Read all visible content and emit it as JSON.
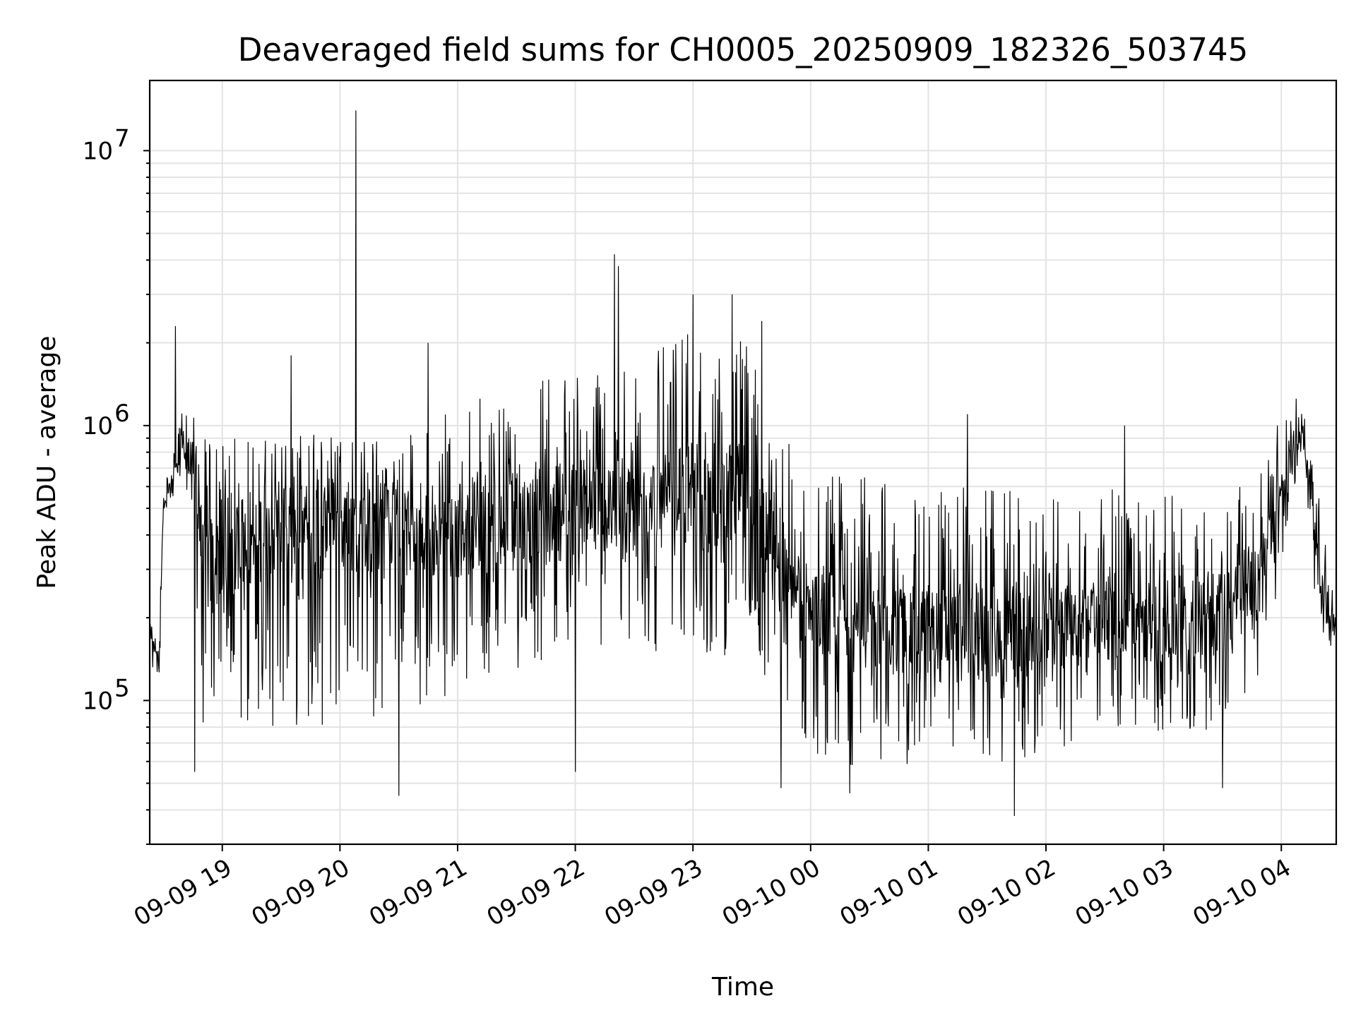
{
  "chart_data": {
    "type": "line",
    "title": "Deaveraged field sums for CH0005_20250909_182326_503745",
    "xlabel": "Time",
    "ylabel": "Peak ADU - average",
    "yscale": "log",
    "xlim": [
      "2025-09-09 18:23",
      "2025-09-10 04:28"
    ],
    "ylim": [
      30000,
      18000000
    ],
    "grid": true,
    "x_ticks": [
      {
        "t": "2025-09-09 19:00",
        "label": "09-09 19"
      },
      {
        "t": "2025-09-09 20:00",
        "label": "09-09 20"
      },
      {
        "t": "2025-09-09 21:00",
        "label": "09-09 21"
      },
      {
        "t": "2025-09-09 22:00",
        "label": "09-09 22"
      },
      {
        "t": "2025-09-09 23:00",
        "label": "09-09 23"
      },
      {
        "t": "2025-09-10 00:00",
        "label": "09-10 00"
      },
      {
        "t": "2025-09-10 01:00",
        "label": "09-10 01"
      },
      {
        "t": "2025-09-10 02:00",
        "label": "09-10 02"
      },
      {
        "t": "2025-09-10 03:00",
        "label": "09-10 03"
      },
      {
        "t": "2025-09-10 04:00",
        "label": "09-10 04"
      }
    ],
    "y_ticks": [
      {
        "value": 100000,
        "base": "10",
        "exp": "5"
      },
      {
        "value": 1000000,
        "base": "10",
        "exp": "6"
      },
      {
        "value": 10000000,
        "base": "10",
        "exp": "7"
      }
    ],
    "series": [
      {
        "color": "#000000",
        "envelope": [
          {
            "t": "2025-09-09 18:23",
            "low": 130000,
            "mid": 160000,
            "high": 190000
          },
          {
            "t": "2025-09-09 18:28",
            "low": 120000,
            "mid": 150000,
            "high": 200000
          },
          {
            "t": "2025-09-09 18:30",
            "low": 450000,
            "mid": 520000,
            "high": 600000
          },
          {
            "t": "2025-09-09 18:35",
            "low": 500000,
            "mid": 620000,
            "high": 800000
          },
          {
            "t": "2025-09-09 18:40",
            "low": 550000,
            "mid": 800000,
            "high": 1200000
          },
          {
            "t": "2025-09-09 18:45",
            "low": 450000,
            "mid": 750000,
            "high": 1100000
          },
          {
            "t": "2025-09-09 18:50",
            "low": 80000,
            "mid": 300000,
            "high": 900000
          },
          {
            "t": "2025-09-09 19:00",
            "low": 70000,
            "mid": 350000,
            "high": 900000
          },
          {
            "t": "2025-09-09 19:30",
            "low": 80000,
            "mid": 420000,
            "high": 950000
          },
          {
            "t": "2025-09-09 20:00",
            "low": 80000,
            "mid": 450000,
            "high": 950000
          },
          {
            "t": "2025-09-09 20:30",
            "low": 80000,
            "mid": 400000,
            "high": 900000
          },
          {
            "t": "2025-09-09 21:00",
            "low": 110000,
            "mid": 420000,
            "high": 1200000
          },
          {
            "t": "2025-09-09 21:30",
            "low": 130000,
            "mid": 450000,
            "high": 1500000
          },
          {
            "t": "2025-09-09 22:00",
            "low": 150000,
            "mid": 500000,
            "high": 1600000
          },
          {
            "t": "2025-09-09 22:30",
            "low": 150000,
            "mid": 500000,
            "high": 1700000
          },
          {
            "t": "2025-09-09 23:00",
            "low": 140000,
            "mid": 550000,
            "high": 2200000
          },
          {
            "t": "2025-09-09 23:30",
            "low": 150000,
            "mid": 550000,
            "high": 2000000
          },
          {
            "t": "2025-09-09 23:40",
            "low": 100000,
            "mid": 380000,
            "high": 1300000
          },
          {
            "t": "2025-09-10 00:00",
            "low": 65000,
            "mid": 200000,
            "high": 700000
          },
          {
            "t": "2025-09-10 00:30",
            "low": 55000,
            "mid": 180000,
            "high": 650000
          },
          {
            "t": "2025-09-10 01:00",
            "low": 55000,
            "mid": 170000,
            "high": 600000
          },
          {
            "t": "2025-09-10 01:30",
            "low": 55000,
            "mid": 175000,
            "high": 600000
          },
          {
            "t": "2025-09-10 02:00",
            "low": 60000,
            "mid": 175000,
            "high": 550000
          },
          {
            "t": "2025-09-10 02:30",
            "low": 80000,
            "mid": 200000,
            "high": 600000
          },
          {
            "t": "2025-09-10 03:00",
            "low": 75000,
            "mid": 190000,
            "high": 550000
          },
          {
            "t": "2025-09-10 03:30",
            "low": 75000,
            "mid": 210000,
            "high": 600000
          },
          {
            "t": "2025-09-10 03:50",
            "low": 120000,
            "mid": 300000,
            "high": 700000
          },
          {
            "t": "2025-09-10 04:10",
            "low": 800000,
            "mid": 1100000,
            "high": 1400000
          },
          {
            "t": "2025-09-10 04:20",
            "low": 150000,
            "mid": 250000,
            "high": 500000
          },
          {
            "t": "2025-09-10 04:28",
            "low": 150000,
            "mid": 180000,
            "high": 220000
          }
        ],
        "spikes": [
          {
            "t": "2025-09-09 18:36",
            "value": 2300000
          },
          {
            "t": "2025-09-09 18:46",
            "value": 55000
          },
          {
            "t": "2025-09-09 19:35",
            "value": 1800000
          },
          {
            "t": "2025-09-09 20:08",
            "value": 14000000
          },
          {
            "t": "2025-09-09 20:30",
            "value": 45000
          },
          {
            "t": "2025-09-09 20:45",
            "value": 2000000
          },
          {
            "t": "2025-09-09 22:00",
            "value": 55000
          },
          {
            "t": "2025-09-09 22:20",
            "value": 4200000
          },
          {
            "t": "2025-09-09 22:22",
            "value": 3800000
          },
          {
            "t": "2025-09-09 23:00",
            "value": 3000000
          },
          {
            "t": "2025-09-09 23:20",
            "value": 3000000
          },
          {
            "t": "2025-09-09 23:35",
            "value": 2400000
          },
          {
            "t": "2025-09-09 23:45",
            "value": 48000
          },
          {
            "t": "2025-09-10 00:20",
            "value": 46000
          },
          {
            "t": "2025-09-10 01:20",
            "value": 1100000
          },
          {
            "t": "2025-09-10 01:44",
            "value": 38000
          },
          {
            "t": "2025-09-10 02:40",
            "value": 1000000
          },
          {
            "t": "2025-09-10 03:30",
            "value": 48000
          },
          {
            "t": "2025-09-10 03:58",
            "value": 1000000
          }
        ]
      }
    ]
  }
}
